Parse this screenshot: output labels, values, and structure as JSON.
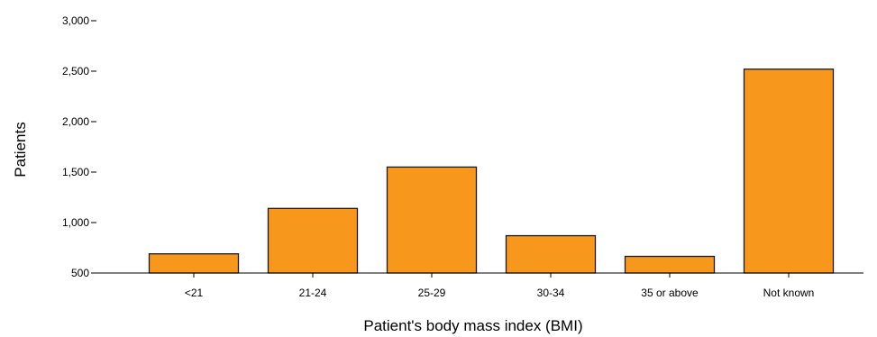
{
  "chart_data": {
    "type": "bar",
    "categories": [
      "<21",
      "21-24",
      "25-29",
      "30-34",
      "35 or above",
      "Not known"
    ],
    "values": [
      690,
      1140,
      1550,
      870,
      665,
      2520
    ],
    "title": "",
    "xlabel": "Patient's body mass index (BMI)",
    "ylabel": "Patients",
    "ylim": [
      500,
      3000
    ],
    "yticks": [
      500,
      1000,
      1500,
      2000,
      2500,
      3000
    ],
    "ytick_labels": [
      "500",
      "1,000",
      "1,500",
      "2,000",
      "2,500",
      "3,000"
    ],
    "grid": false,
    "legend": "none",
    "bar_color": "#F7981D",
    "bar_edge_color": "#1a1a1a"
  }
}
